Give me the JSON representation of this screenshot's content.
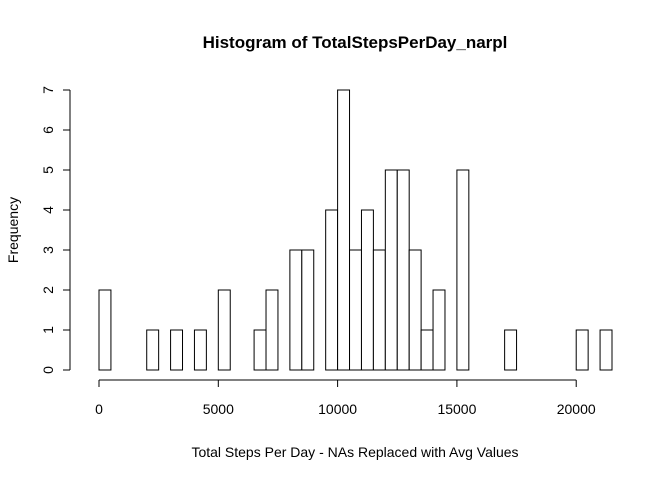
{
  "chart_data": {
    "type": "bar",
    "title": "Histogram of TotalStepsPerDay_narpl",
    "xlabel": "Total Steps Per Day - NAs Replaced with Avg Values",
    "ylabel": "Frequency",
    "bin_width": 500,
    "xlim": [
      0,
      21500
    ],
    "ylim": [
      0,
      7
    ],
    "x_ticks": [
      0,
      5000,
      10000,
      15000,
      20000
    ],
    "x_tick_labels": [
      "0",
      "5000",
      "10000",
      "15000",
      "20000"
    ],
    "y_ticks": [
      0,
      1,
      2,
      3,
      4,
      5,
      6,
      7
    ],
    "y_tick_labels": [
      "0",
      "1",
      "2",
      "3",
      "4",
      "5",
      "6",
      "7"
    ],
    "bin_starts": [
      0,
      500,
      1000,
      1500,
      2000,
      2500,
      3000,
      3500,
      4000,
      4500,
      5000,
      5500,
      6000,
      6500,
      7000,
      7500,
      8000,
      8500,
      9000,
      9500,
      10000,
      10500,
      11000,
      11500,
      12000,
      12500,
      13000,
      13500,
      14000,
      14500,
      15000,
      15500,
      16000,
      16500,
      17000,
      17500,
      18000,
      18500,
      19000,
      19500,
      20000,
      20500,
      21000
    ],
    "values": [
      2,
      0,
      0,
      0,
      1,
      0,
      1,
      0,
      1,
      0,
      2,
      0,
      0,
      1,
      2,
      0,
      3,
      3,
      0,
      4,
      7,
      3,
      4,
      3,
      5,
      5,
      3,
      1,
      2,
      0,
      5,
      0,
      0,
      0,
      1,
      0,
      0,
      0,
      0,
      0,
      1,
      0,
      1
    ],
    "grid": false,
    "fill_color": "#ffffff",
    "stroke_color": "#000000"
  }
}
